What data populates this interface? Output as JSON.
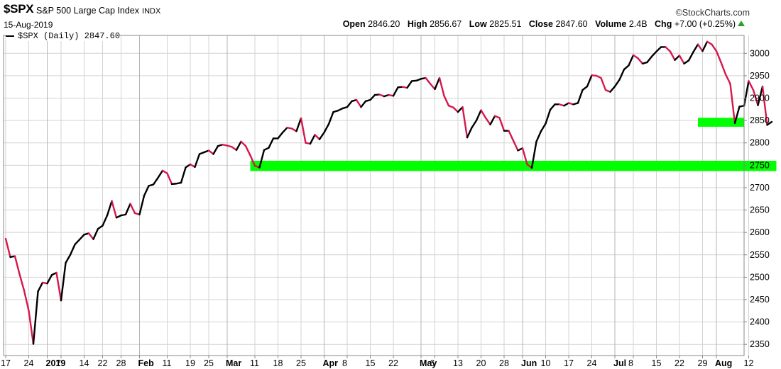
{
  "header": {
    "symbol": "$SPX",
    "description": "S&P 500 Large Cap Index",
    "exchange": "INDX",
    "date": "15-Aug-2019",
    "brand": "©StockCharts.com",
    "stats": [
      {
        "label": "Open",
        "value": "2846.20"
      },
      {
        "label": "High",
        "value": "2856.67"
      },
      {
        "label": "Low",
        "value": "2825.51"
      },
      {
        "label": "Close",
        "value": "2847.60"
      },
      {
        "label": "Volume",
        "value": "2.4B"
      },
      {
        "label": "Chg",
        "value": "+7.00 (+0.25%)"
      }
    ]
  },
  "legend": {
    "label": "$SPX (Daily) 2847.60"
  },
  "colors": {
    "up": "#000000",
    "down": "#d6174b",
    "support": "#00ff00",
    "grid": "#d3d3d3"
  },
  "chart_data": {
    "type": "line",
    "title": "$SPX S&P 500 Large Cap Index",
    "ylim": [
      2325,
      3040
    ],
    "y_ticks": [
      2350,
      2400,
      2450,
      2500,
      2550,
      2600,
      2650,
      2700,
      2750,
      2800,
      2850,
      2900,
      2950,
      3000
    ],
    "x_ticks": [
      {
        "label": "17",
        "i": 0,
        "bold": false
      },
      {
        "label": "24",
        "i": 5,
        "bold": false
      },
      {
        "label": "2019",
        "i": 9,
        "bold": true
      },
      {
        "label": "7",
        "i": 12,
        "bold": false
      },
      {
        "label": "14",
        "i": 17,
        "bold": false
      },
      {
        "label": "22",
        "i": 21,
        "bold": false
      },
      {
        "label": "28",
        "i": 25,
        "bold": false
      },
      {
        "label": "Feb",
        "i": 29,
        "bold": true
      },
      {
        "label": "11",
        "i": 35,
        "bold": false
      },
      {
        "label": "19",
        "i": 40,
        "bold": false
      },
      {
        "label": "25",
        "i": 44,
        "bold": false
      },
      {
        "label": "Mar",
        "i": 48,
        "bold": true
      },
      {
        "label": "11",
        "i": 54,
        "bold": false
      },
      {
        "label": "18",
        "i": 59,
        "bold": false
      },
      {
        "label": "25",
        "i": 64,
        "bold": false
      },
      {
        "label": "Apr",
        "i": 69,
        "bold": true
      },
      {
        "label": "8",
        "i": 74,
        "bold": false
      },
      {
        "label": "15",
        "i": 79,
        "bold": false
      },
      {
        "label": "22",
        "i": 84,
        "bold": false
      },
      {
        "label": "May",
        "i": 90,
        "bold": true
      },
      {
        "label": "6",
        "i": 93,
        "bold": false
      },
      {
        "label": "13",
        "i": 98,
        "bold": false
      },
      {
        "label": "20",
        "i": 103,
        "bold": false
      },
      {
        "label": "28",
        "i": 108,
        "bold": false
      },
      {
        "label": "Jun",
        "i": 112,
        "bold": true
      },
      {
        "label": "10",
        "i": 117,
        "bold": false
      },
      {
        "label": "17",
        "i": 122,
        "bold": false
      },
      {
        "label": "24",
        "i": 127,
        "bold": false
      },
      {
        "label": "Jul",
        "i": 132,
        "bold": true
      },
      {
        "label": "8",
        "i": 136,
        "bold": false
      },
      {
        "label": "15",
        "i": 141,
        "bold": false
      },
      {
        "label": "22",
        "i": 146,
        "bold": false
      },
      {
        "label": "29",
        "i": 151,
        "bold": false
      },
      {
        "label": "Aug",
        "i": 154,
        "bold": true
      },
      {
        "label": "12",
        "i": 161,
        "bold": false
      }
    ],
    "close": [
      2586,
      2545,
      2547,
      2507,
      2470,
      2425,
      2351,
      2468,
      2488,
      2486,
      2505,
      2510,
      2448,
      2532,
      2550,
      2573,
      2584,
      2595,
      2598,
      2585,
      2608,
      2615,
      2638,
      2670,
      2633,
      2638,
      2640,
      2664,
      2643,
      2640,
      2682,
      2704,
      2707,
      2722,
      2738,
      2732,
      2708,
      2709,
      2711,
      2745,
      2752,
      2746,
      2775,
      2779,
      2783,
      2775,
      2793,
      2796,
      2794,
      2791,
      2784,
      2803,
      2793,
      2772,
      2749,
      2745,
      2784,
      2789,
      2810,
      2810,
      2823,
      2834,
      2832,
      2826,
      2855,
      2800,
      2798,
      2818,
      2808,
      2823,
      2842,
      2869,
      2872,
      2877,
      2880,
      2893,
      2896,
      2880,
      2893,
      2896,
      2907,
      2908,
      2904,
      2907,
      2905,
      2924,
      2925,
      2923,
      2938,
      2939,
      2943,
      2945,
      2932,
      2920,
      2945,
      2905,
      2883,
      2879,
      2869,
      2880,
      2812,
      2834,
      2850,
      2873,
      2856,
      2841,
      2860,
      2856,
      2827,
      2827,
      2805,
      2783,
      2788,
      2752,
      2744,
      2803,
      2826,
      2843,
      2874,
      2886,
      2886,
      2883,
      2889,
      2886,
      2889,
      2918,
      2926,
      2951,
      2950,
      2945,
      2918,
      2914,
      2926,
      2941,
      2964,
      2973,
      2996,
      2989,
      2977,
      2980,
      2993,
      3004,
      3014,
      3014,
      3004,
      2985,
      2995,
      2977,
      2984,
      3003,
      3020,
      3005,
      3026,
      3020,
      3005,
      2980,
      2953,
      2932,
      2844,
      2881,
      2883,
      2938,
      2918,
      2884,
      2926,
      2840,
      2847
    ],
    "support_zones": [
      {
        "y_low": 2737,
        "y_high": 2760,
        "from_i": 53,
        "to_i": 167
      },
      {
        "y_low": 2836,
        "y_high": 2856,
        "from_i": 150,
        "to_i": 160
      }
    ]
  }
}
